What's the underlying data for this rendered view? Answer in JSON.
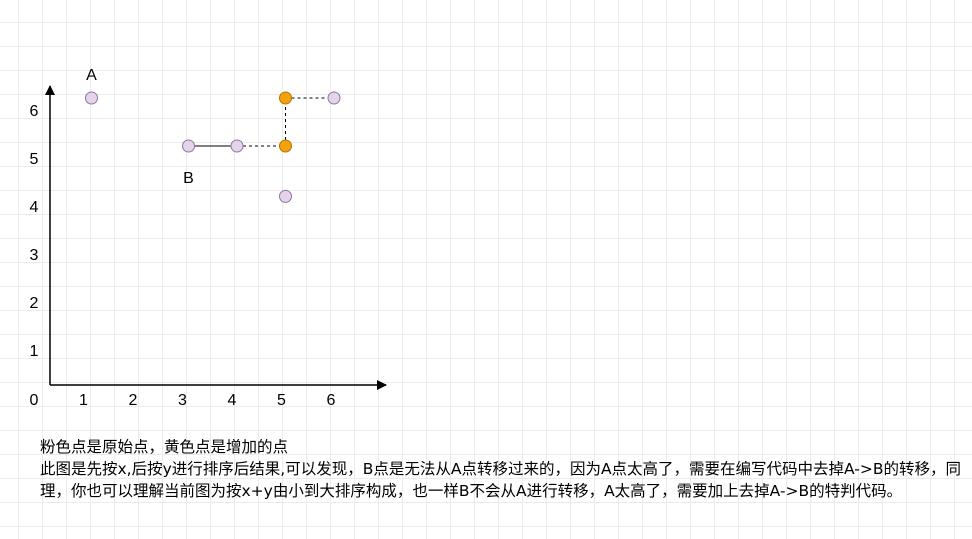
{
  "x_ticks": [
    "0",
    "1",
    "2",
    "3",
    "4",
    "5",
    "6"
  ],
  "y_ticks": [
    "1",
    "2",
    "3",
    "4",
    "5",
    "6"
  ],
  "points": [
    {
      "id": "p-a",
      "x": 1,
      "y": 6.25,
      "kind": "original",
      "label": "A"
    },
    {
      "id": "p-b1",
      "x": 3,
      "y": 5.25,
      "kind": "original",
      "label": "B"
    },
    {
      "id": "p-b2",
      "x": 4,
      "y": 5.25,
      "kind": "original",
      "label": ""
    },
    {
      "id": "p-y1",
      "x": 5,
      "y": 5.25,
      "kind": "added",
      "label": ""
    },
    {
      "id": "p-y2",
      "x": 5,
      "y": 6.25,
      "kind": "added",
      "label": ""
    },
    {
      "id": "p-r",
      "x": 6,
      "y": 6.25,
      "kind": "original",
      "label": ""
    },
    {
      "id": "p-low",
      "x": 5,
      "y": 4.2,
      "kind": "original",
      "label": ""
    }
  ],
  "edges": [
    {
      "from": "p-b1",
      "to": "p-b2",
      "style": "solid"
    },
    {
      "from": "p-b2",
      "to": "p-y1",
      "style": "dashed"
    },
    {
      "from": "p-y1",
      "to": "p-y2",
      "style": "dashed"
    },
    {
      "from": "p-y2",
      "to": "p-r",
      "style": "dashed"
    }
  ],
  "colors": {
    "original_fill": "#e1d5e7",
    "original_stroke": "#9673a6",
    "added_fill": "#f0a30a",
    "added_stroke": "#bd7000",
    "axis": "#000000"
  },
  "caption": {
    "line1": "粉色点是原始点，黄色点是增加的点",
    "line2": "此图是先按x,后按y进行排序后结果,可以发现，B点是无法从A点转移过来的，因为A点太高了，需要在编写代码中去掉A->B的转移，同理，你也可以理解当前图为按x+y由小到大排序构成，也一样B不会从A进行转移，A太高了，需要加上去掉A->B的特判代码。"
  }
}
